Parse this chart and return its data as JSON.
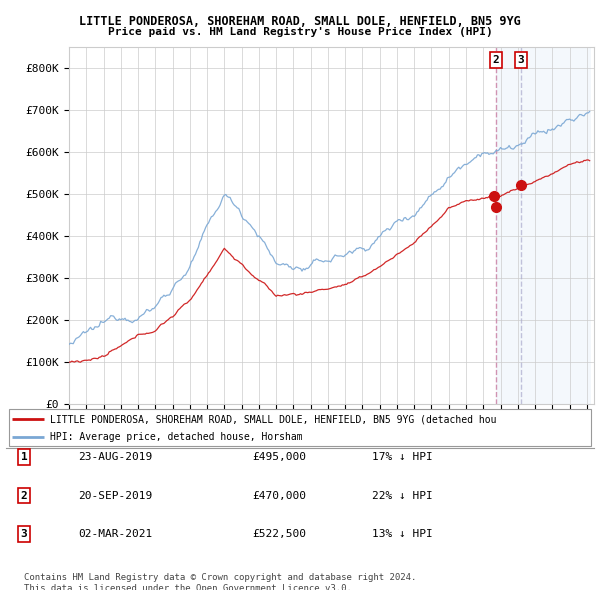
{
  "title1": "LITTLE PONDEROSA, SHOREHAM ROAD, SMALL DOLE, HENFIELD, BN5 9YG",
  "title2": "Price paid vs. HM Land Registry's House Price Index (HPI)",
  "ylim": [
    0,
    850000
  ],
  "yticks": [
    0,
    100000,
    200000,
    300000,
    400000,
    500000,
    600000,
    700000,
    800000
  ],
  "ytick_labels": [
    "£0",
    "£100K",
    "£200K",
    "£300K",
    "£400K",
    "£500K",
    "£600K",
    "£700K",
    "£800K"
  ],
  "hpi_color": "#7aa7d4",
  "price_color": "#cc1111",
  "background_color": "#ffffff",
  "grid_color": "#cccccc",
  "sale_prices": [
    495000,
    470000,
    522500
  ],
  "legend_label_red": "LITTLE PONDEROSA, SHOREHAM ROAD, SMALL DOLE, HENFIELD, BN5 9YG (detached hou",
  "legend_label_blue": "HPI: Average price, detached house, Horsham",
  "table_data": [
    [
      "1",
      "23-AUG-2019",
      "£495,000",
      "17% ↓ HPI"
    ],
    [
      "2",
      "20-SEP-2019",
      "£470,000",
      "22% ↓ HPI"
    ],
    [
      "3",
      "02-MAR-2021",
      "£522,500",
      "13% ↓ HPI"
    ]
  ],
  "footnote": "Contains HM Land Registry data © Crown copyright and database right 2024.\nThis data is licensed under the Open Government Licence v3.0.",
  "dashed_line_color": "#cc88aa",
  "highlight_bg": "#ddeeff",
  "xstart_year": 1995,
  "xend_year": 2025
}
